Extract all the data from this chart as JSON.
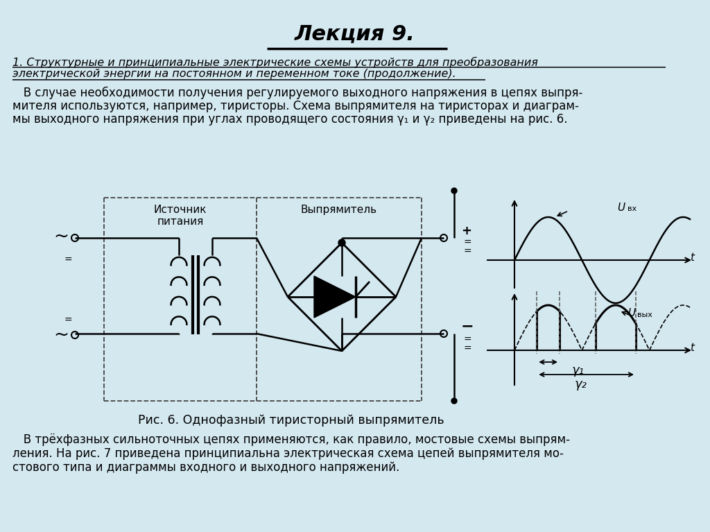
{
  "bg_color": "#d4e8f0",
  "title": "Лекция 9.",
  "subtitle1": "1. Структурные и принципиальные электрические схемы устройств для преобразования",
  "subtitle2": "электрической энергии на постоянном и переменном токе (продолжение).",
  "caption": "Рис. 6. Однофазный тиристорный выпрямитель",
  "label_source": "Источник\nпитания",
  "label_rectifier": "Выпрямитель",
  "label_gamma1": "γ₁",
  "label_gamma2": "γ₂",
  "text_color": "#000000",
  "line_color": "#000000",
  "dashed_color": "#555555",
  "body1_lines": [
    "   В случае необходимости получения регулируемого выходного напряжения в цепях выпря-",
    "мителя используются, например, тиристоры. Схема выпрямителя на тиристорах и диаграм-",
    "мы выходного напряжения при углах проводящего состояния γ₁ и γ₂ приведены на рис. 6."
  ],
  "body2_lines": [
    "   В трёхфазных сильноточных цепях применяются, как правило, мостовые схемы выпрям-",
    "ления. На рис. 7 приведена принципиальна электрическая схема цепей выпрямителя мо-",
    "стового типа и диаграммы входного и выходного напряжений."
  ]
}
